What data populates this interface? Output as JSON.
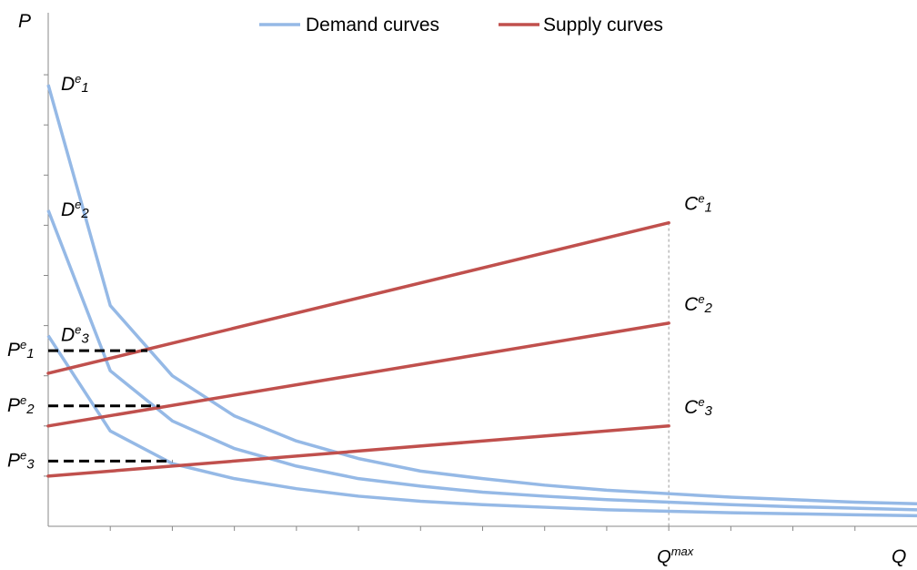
{
  "chart_data": {
    "type": "line",
    "title": "",
    "xlabel": "Q",
    "ylabel": "P",
    "xlim": [
      0,
      14
    ],
    "ylim": [
      0,
      10
    ],
    "grid": false,
    "legend": {
      "position": "top",
      "entries": [
        {
          "label": "Demand curves",
          "color": "#95b9e6"
        },
        {
          "label": "Supply curves",
          "color": "#c0504d"
        }
      ]
    },
    "demand_series": [
      {
        "label": "De1",
        "label_main": "D",
        "label_sup": "e",
        "label_sub": "1",
        "x": [
          0,
          1,
          2,
          3,
          4,
          5,
          6,
          7,
          8,
          9,
          10,
          11,
          12,
          13,
          14
        ],
        "y": [
          8.8,
          4.4,
          3.0,
          2.2,
          1.7,
          1.35,
          1.1,
          0.95,
          0.82,
          0.72,
          0.65,
          0.58,
          0.53,
          0.48,
          0.45
        ]
      },
      {
        "label": "De2",
        "label_main": "D",
        "label_sup": "e",
        "label_sub": "2",
        "x": [
          0,
          1,
          2,
          3,
          4,
          5,
          6,
          7,
          8,
          9,
          10,
          11,
          12,
          13,
          14
        ],
        "y": [
          6.3,
          3.1,
          2.1,
          1.55,
          1.2,
          0.95,
          0.8,
          0.68,
          0.6,
          0.53,
          0.48,
          0.43,
          0.39,
          0.36,
          0.33
        ]
      },
      {
        "label": "De3",
        "label_main": "D",
        "label_sup": "e",
        "label_sub": "3",
        "x": [
          0,
          1,
          2,
          3,
          4,
          5,
          6,
          7,
          8,
          9,
          10,
          11,
          12,
          13,
          14
        ],
        "y": [
          3.8,
          1.9,
          1.25,
          0.95,
          0.75,
          0.6,
          0.5,
          0.43,
          0.38,
          0.33,
          0.3,
          0.27,
          0.25,
          0.23,
          0.21
        ]
      }
    ],
    "supply_series": [
      {
        "label": "Ce1",
        "label_main": "C",
        "label_sup": "e",
        "label_sub": "1",
        "x": [
          0,
          10
        ],
        "y": [
          3.05,
          6.05
        ]
      },
      {
        "label": "Ce2",
        "label_main": "C",
        "label_sup": "e",
        "label_sub": "2",
        "x": [
          0,
          10
        ],
        "y": [
          2.0,
          4.05
        ]
      },
      {
        "label": "Ce3",
        "label_main": "C",
        "label_sup": "e",
        "label_sub": "3",
        "x": [
          0,
          10
        ],
        "y": [
          1.0,
          2.0
        ]
      }
    ],
    "equilibrium_prices": [
      {
        "label": "Pe1",
        "label_main": "P",
        "label_sup": "e",
        "label_sub": "1",
        "x_end": 1.6,
        "y": 3.5
      },
      {
        "label": "Pe2",
        "label_main": "P",
        "label_sup": "e",
        "label_sub": "2",
        "x_end": 1.8,
        "y": 2.4
      },
      {
        "label": "Pe3",
        "label_main": "P",
        "label_sup": "e",
        "label_sub": "3",
        "x_end": 2.0,
        "y": 1.3
      }
    ],
    "qmax": {
      "x": 10,
      "label_main": "Q",
      "label_sup": "max"
    },
    "x_ticks": [
      1,
      2,
      3,
      4,
      5,
      6,
      7,
      8,
      9,
      10,
      11,
      12,
      13
    ],
    "y_ticks": [
      1,
      2,
      3,
      4,
      5,
      6,
      7,
      8,
      9
    ],
    "colors": {
      "demand": "#95b9e6",
      "supply": "#c0504d",
      "axis": "#888888",
      "dashed": "#000000"
    }
  }
}
